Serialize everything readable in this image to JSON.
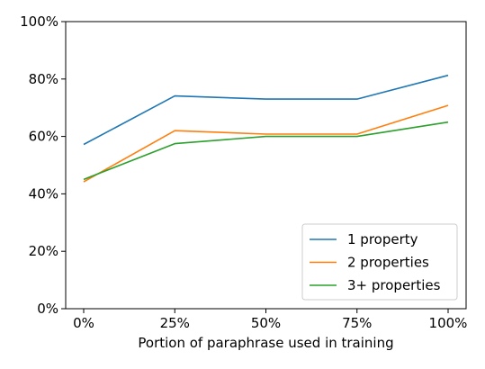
{
  "chart_data": {
    "type": "line",
    "title": "",
    "xlabel": "Portion of paraphrase used in training",
    "ylabel": "",
    "categories": [
      "0%",
      "25%",
      "50%",
      "75%",
      "100%"
    ],
    "y_ticks": [
      "0%",
      "20%",
      "40%",
      "60%",
      "80%",
      "100%"
    ],
    "ylim": [
      0,
      100
    ],
    "grid": false,
    "legend_position": "bottom-right",
    "series": [
      {
        "name": "1 property",
        "color": "#1f77b4",
        "values": [
          57.2,
          74.1,
          73.0,
          73.0,
          81.3
        ]
      },
      {
        "name": "2 properties",
        "color": "#ff7f0e",
        "values": [
          44.2,
          62.0,
          60.8,
          60.8,
          70.8
        ]
      },
      {
        "name": "3+ properties",
        "color": "#2ca02c",
        "values": [
          45.0,
          57.5,
          60.0,
          60.0,
          65.0
        ]
      }
    ]
  }
}
